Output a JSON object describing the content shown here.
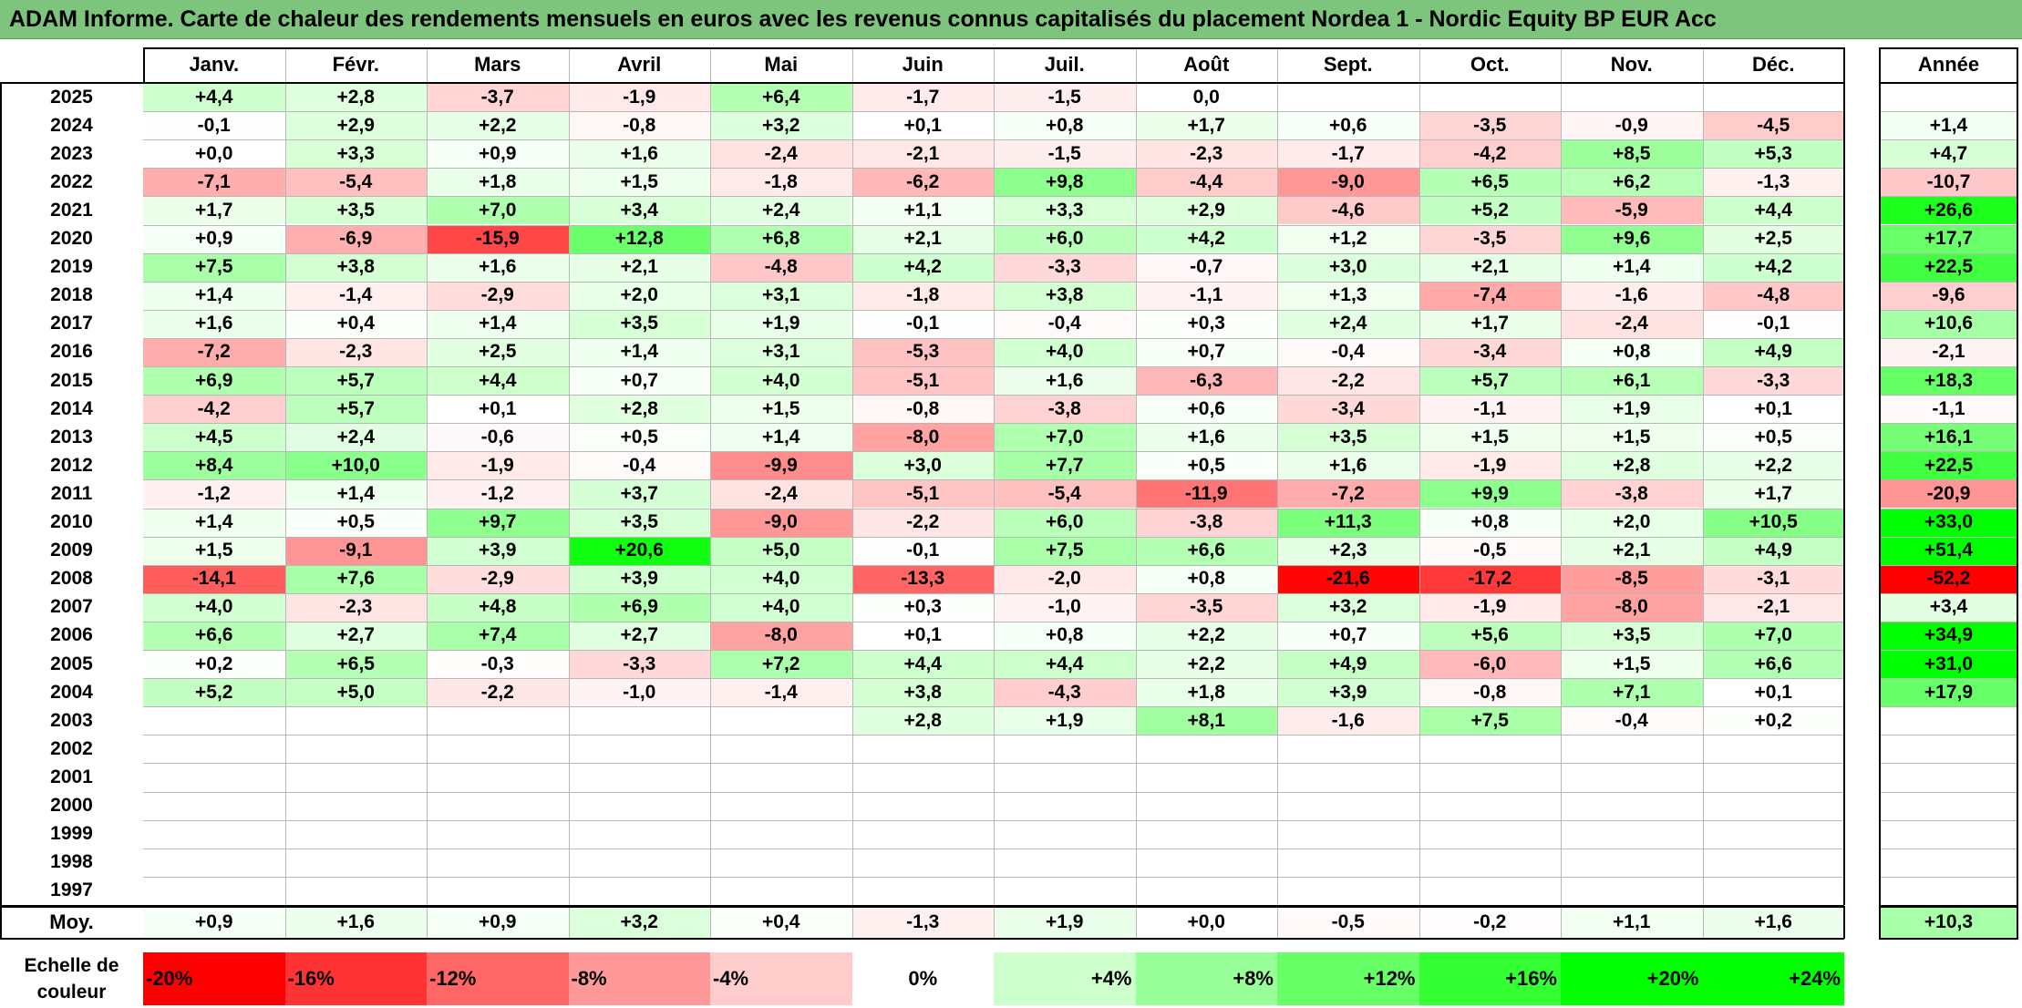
{
  "title": "ADAM Informe. Carte de chaleur des rendements mensuels en euros avec les revenus connus capitalisés du placement Nordea 1 - Nordic Equity BP EUR Acc",
  "chart_data": {
    "type": "heatmap",
    "title": "ADAM Informe. Carte de chaleur des rendements mensuels en euros avec les revenus connus capitalisés du placement Nordea 1 - Nordic Equity BP EUR Acc",
    "months": [
      "Janv.",
      "Févr.",
      "Mars",
      "Avril",
      "Mai",
      "Juin",
      "Juil.",
      "Août",
      "Sept.",
      "Oct.",
      "Nov.",
      "Déc."
    ],
    "year_header": "Année",
    "rows": [
      {
        "year": "2025",
        "values": [
          4.4,
          2.8,
          -3.7,
          -1.9,
          6.4,
          -1.7,
          -1.5,
          0.0,
          null,
          null,
          null,
          null
        ],
        "annual": null
      },
      {
        "year": "2024",
        "values": [
          -0.1,
          2.9,
          2.2,
          -0.8,
          3.2,
          0.1,
          0.8,
          1.7,
          0.6,
          -3.5,
          -0.9,
          -4.5
        ],
        "annual": 1.4
      },
      {
        "year": "2023",
        "values": [
          0.0,
          3.3,
          0.9,
          1.6,
          -2.4,
          -2.1,
          -1.5,
          -2.3,
          -1.7,
          -4.2,
          8.5,
          5.3
        ],
        "annual": 4.7
      },
      {
        "year": "2022",
        "values": [
          -7.1,
          -5.4,
          1.8,
          1.5,
          -1.8,
          -6.2,
          9.8,
          -4.4,
          -9.0,
          6.5,
          6.2,
          -1.3
        ],
        "annual": -10.7
      },
      {
        "year": "2021",
        "values": [
          1.7,
          3.5,
          7.0,
          3.4,
          2.4,
          1.1,
          3.3,
          2.9,
          -4.6,
          5.2,
          -5.9,
          4.4
        ],
        "annual": 26.6
      },
      {
        "year": "2020",
        "values": [
          0.9,
          -6.9,
          -15.9,
          12.8,
          6.8,
          2.1,
          6.0,
          4.2,
          1.2,
          -3.5,
          9.6,
          2.5
        ],
        "annual": 17.7
      },
      {
        "year": "2019",
        "values": [
          7.5,
          3.8,
          1.6,
          2.1,
          -4.8,
          4.2,
          -3.3,
          -0.7,
          3.0,
          2.1,
          1.4,
          4.2
        ],
        "annual": 22.5
      },
      {
        "year": "2018",
        "values": [
          1.4,
          -1.4,
          -2.9,
          2.0,
          3.1,
          -1.8,
          3.8,
          -1.1,
          1.3,
          -7.4,
          -1.6,
          -4.8
        ],
        "annual": -9.6
      },
      {
        "year": "2017",
        "values": [
          1.6,
          0.4,
          1.4,
          3.5,
          1.9,
          -0.1,
          -0.4,
          0.3,
          2.4,
          1.7,
          -2.4,
          -0.1
        ],
        "annual": 10.6
      },
      {
        "year": "2016",
        "values": [
          -7.2,
          -2.3,
          2.5,
          1.4,
          3.1,
          -5.3,
          4.0,
          0.7,
          -0.4,
          -3.4,
          0.8,
          4.9
        ],
        "annual": -2.1
      },
      {
        "year": "2015",
        "values": [
          6.9,
          5.7,
          4.4,
          0.7,
          4.0,
          -5.1,
          1.6,
          -6.3,
          -2.2,
          5.7,
          6.1,
          -3.3
        ],
        "annual": 18.3
      },
      {
        "year": "2014",
        "values": [
          -4.2,
          5.7,
          0.1,
          2.8,
          1.5,
          -0.8,
          -3.8,
          0.6,
          -3.4,
          -1.1,
          1.9,
          0.1
        ],
        "annual": -1.1
      },
      {
        "year": "2013",
        "values": [
          4.5,
          2.4,
          -0.6,
          0.5,
          1.4,
          -8.0,
          7.0,
          1.6,
          3.5,
          1.5,
          1.5,
          0.5
        ],
        "annual": 16.1
      },
      {
        "year": "2012",
        "values": [
          8.4,
          10.0,
          -1.9,
          -0.4,
          -9.9,
          3.0,
          7.7,
          0.5,
          1.6,
          -1.9,
          2.8,
          2.2
        ],
        "annual": 22.5
      },
      {
        "year": "2011",
        "values": [
          -1.2,
          1.4,
          -1.2,
          3.7,
          -2.4,
          -5.1,
          -5.4,
          -11.9,
          -7.2,
          9.9,
          -3.8,
          1.7
        ],
        "annual": -20.9
      },
      {
        "year": "2010",
        "values": [
          1.4,
          0.5,
          9.7,
          3.5,
          -9.0,
          -2.2,
          6.0,
          -3.8,
          11.3,
          0.8,
          2.0,
          10.5
        ],
        "annual": 33.0
      },
      {
        "year": "2009",
        "values": [
          1.5,
          -9.1,
          3.9,
          20.6,
          5.0,
          -0.1,
          7.5,
          6.6,
          2.3,
          -0.5,
          2.1,
          4.9
        ],
        "annual": 51.4
      },
      {
        "year": "2008",
        "values": [
          -14.1,
          7.6,
          -2.9,
          3.9,
          4.0,
          -13.3,
          -2.0,
          0.8,
          -21.6,
          -17.2,
          -8.5,
          -3.1
        ],
        "annual": -52.2
      },
      {
        "year": "2007",
        "values": [
          4.0,
          -2.3,
          4.8,
          6.9,
          4.0,
          0.3,
          -1.0,
          -3.5,
          3.2,
          -1.9,
          -8.0,
          -2.1
        ],
        "annual": 3.4
      },
      {
        "year": "2006",
        "values": [
          6.6,
          2.7,
          7.4,
          2.7,
          -8.0,
          0.1,
          0.8,
          2.2,
          0.7,
          5.6,
          3.5,
          7.0
        ],
        "annual": 34.9
      },
      {
        "year": "2005",
        "values": [
          0.2,
          6.5,
          -0.3,
          -3.3,
          7.2,
          4.4,
          4.4,
          2.2,
          4.9,
          -6.0,
          1.5,
          6.6
        ],
        "annual": 31.0
      },
      {
        "year": "2004",
        "values": [
          5.2,
          5.0,
          -2.2,
          -1.0,
          -1.4,
          3.8,
          -4.3,
          1.8,
          3.9,
          -0.8,
          7.1,
          0.1
        ],
        "annual": 17.9
      },
      {
        "year": "2003",
        "values": [
          null,
          null,
          null,
          null,
          null,
          2.8,
          1.9,
          8.1,
          -1.6,
          7.5,
          -0.4,
          0.2
        ],
        "annual": null
      },
      {
        "year": "2002",
        "values": [
          null,
          null,
          null,
          null,
          null,
          null,
          null,
          null,
          null,
          null,
          null,
          null
        ],
        "annual": null
      },
      {
        "year": "2001",
        "values": [
          null,
          null,
          null,
          null,
          null,
          null,
          null,
          null,
          null,
          null,
          null,
          null
        ],
        "annual": null
      },
      {
        "year": "2000",
        "values": [
          null,
          null,
          null,
          null,
          null,
          null,
          null,
          null,
          null,
          null,
          null,
          null
        ],
        "annual": null
      },
      {
        "year": "1999",
        "values": [
          null,
          null,
          null,
          null,
          null,
          null,
          null,
          null,
          null,
          null,
          null,
          null
        ],
        "annual": null
      },
      {
        "year": "1998",
        "values": [
          null,
          null,
          null,
          null,
          null,
          null,
          null,
          null,
          null,
          null,
          null,
          null
        ],
        "annual": null
      },
      {
        "year": "1997",
        "values": [
          null,
          null,
          null,
          null,
          null,
          null,
          null,
          null,
          null,
          null,
          null,
          null
        ],
        "annual": null
      }
    ],
    "average": {
      "label": "Moy.",
      "values": [
        0.9,
        1.6,
        0.9,
        3.2,
        0.4,
        -1.3,
        1.9,
        0.0,
        -0.5,
        -0.2,
        1.1,
        1.6
      ],
      "annual": 10.3
    },
    "scale": {
      "label_line1": "Echelle de",
      "label_line2": "couleur",
      "items": [
        {
          "label": "-20%",
          "value": -20,
          "color": "#ff0000"
        },
        {
          "label": "-16%",
          "value": -16,
          "color": "#ff3333"
        },
        {
          "label": "-12%",
          "value": -12,
          "color": "#ff6666"
        },
        {
          "label": "-8%",
          "value": -8,
          "color": "#ff9999"
        },
        {
          "label": "-4%",
          "value": -4,
          "color": "#ffcccc"
        },
        {
          "label": "0%",
          "value": 0,
          "color": "#ffffff"
        },
        {
          "label": "+4%",
          "value": 4,
          "color": "#ccffcc"
        },
        {
          "label": "+8%",
          "value": 8,
          "color": "#99ff99"
        },
        {
          "label": "+12%",
          "value": 12,
          "color": "#66ff66"
        },
        {
          "label": "+16%",
          "value": 16,
          "color": "#33ff33"
        },
        {
          "label": "+20%",
          "value": 20,
          "color": "#00ff00"
        },
        {
          "label": "+24%",
          "value": 24,
          "color": "#00ff00"
        }
      ]
    }
  },
  "colors": {
    "title_bg": "#7dc47d",
    "negative_max": "#ff0000",
    "positive_max": "#00ff00",
    "neutral": "#ffffff"
  }
}
